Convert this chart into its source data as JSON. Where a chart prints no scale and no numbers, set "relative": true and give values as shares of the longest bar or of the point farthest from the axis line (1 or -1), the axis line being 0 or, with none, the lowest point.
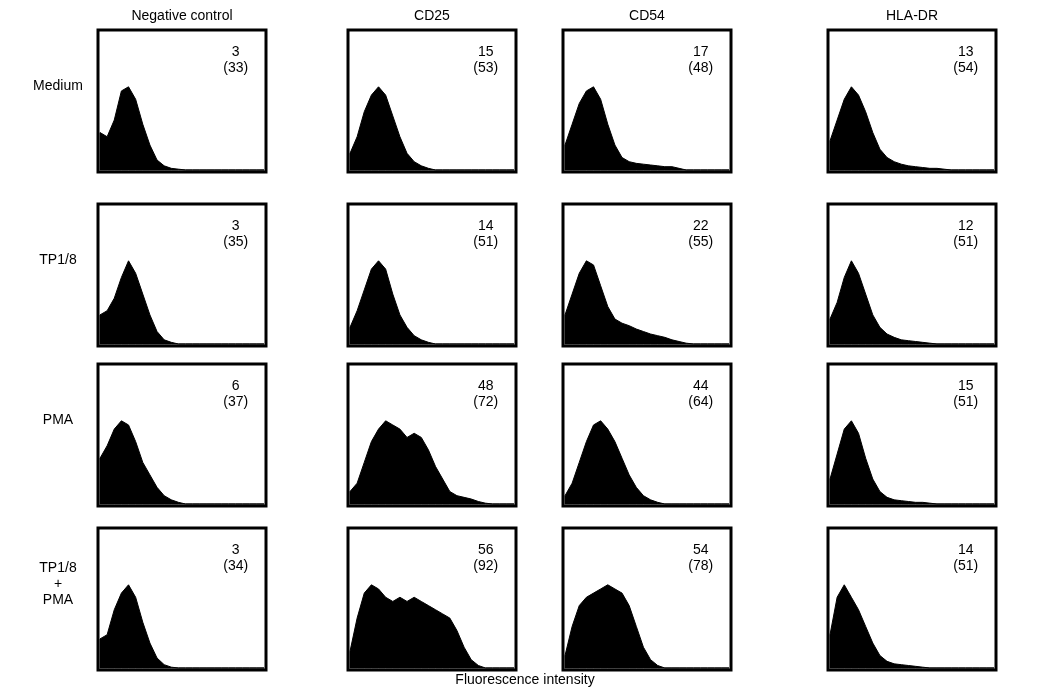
{
  "chart_data": [
    {
      "type": "area",
      "title": "Negative control",
      "ylabel": "Medium",
      "relative": true,
      "color": "#000000",
      "annotations": [
        "3",
        "(33)"
      ],
      "categories": [
        null,
        null,
        null,
        null,
        null,
        null,
        null,
        null,
        null,
        null,
        null,
        null,
        null,
        null,
        null,
        null,
        null,
        null,
        null,
        null,
        null,
        null,
        null,
        null
      ],
      "values": [
        0.45,
        0.4,
        0.6,
        0.95,
        1,
        0.85,
        0.55,
        0.3,
        0.12,
        0.05,
        0.02,
        0.01,
        0,
        0,
        0,
        0,
        0,
        0,
        0,
        0,
        0,
        0,
        0,
        0
      ]
    },
    {
      "type": "area",
      "title": "CD25",
      "relative": true,
      "color": "#000000",
      "annotations": [
        "15",
        "(53)"
      ],
      "categories": [
        null,
        null,
        null,
        null,
        null,
        null,
        null,
        null,
        null,
        null,
        null,
        null,
        null,
        null,
        null,
        null,
        null,
        null,
        null,
        null,
        null,
        null,
        null,
        null
      ],
      "values": [
        0.2,
        0.4,
        0.7,
        0.9,
        1,
        0.9,
        0.65,
        0.4,
        0.2,
        0.1,
        0.05,
        0.02,
        0,
        0,
        0,
        0,
        0,
        0,
        0,
        0,
        0,
        0,
        0,
        0
      ]
    },
    {
      "type": "area",
      "title": "CD54",
      "relative": true,
      "color": "#000000",
      "annotations": [
        "17",
        "(48)"
      ],
      "categories": [
        null,
        null,
        null,
        null,
        null,
        null,
        null,
        null,
        null,
        null,
        null,
        null,
        null,
        null,
        null,
        null,
        null,
        null,
        null,
        null,
        null,
        null,
        null,
        null
      ],
      "values": [
        0.3,
        0.55,
        0.8,
        0.95,
        1,
        0.85,
        0.55,
        0.3,
        0.15,
        0.1,
        0.08,
        0.07,
        0.06,
        0.05,
        0.04,
        0.04,
        0.02,
        0,
        0,
        0,
        0,
        0,
        0,
        0
      ]
    },
    {
      "type": "area",
      "title": "HLA-DR",
      "relative": true,
      "color": "#000000",
      "annotations": [
        "13",
        "(54)"
      ],
      "categories": [
        null,
        null,
        null,
        null,
        null,
        null,
        null,
        null,
        null,
        null,
        null,
        null,
        null,
        null,
        null,
        null,
        null,
        null,
        null,
        null,
        null,
        null,
        null,
        null
      ],
      "values": [
        0.35,
        0.6,
        0.85,
        1,
        0.9,
        0.7,
        0.45,
        0.25,
        0.15,
        0.1,
        0.07,
        0.05,
        0.04,
        0.03,
        0.02,
        0.02,
        0.01,
        0,
        0,
        0,
        0,
        0,
        0,
        0
      ]
    },
    {
      "type": "area",
      "ylabel": "TP1/8",
      "relative": true,
      "color": "#000000",
      "annotations": [
        "3",
        "(35)"
      ],
      "categories": [
        null,
        null,
        null,
        null,
        null,
        null,
        null,
        null,
        null,
        null,
        null,
        null,
        null,
        null,
        null,
        null,
        null,
        null,
        null,
        null,
        null,
        null,
        null,
        null
      ],
      "values": [
        0.35,
        0.4,
        0.55,
        0.8,
        1,
        0.85,
        0.6,
        0.35,
        0.15,
        0.05,
        0.02,
        0,
        0,
        0,
        0,
        0,
        0,
        0,
        0,
        0,
        0,
        0,
        0,
        0
      ]
    },
    {
      "type": "area",
      "relative": true,
      "color": "#000000",
      "annotations": [
        "14",
        "(51)"
      ],
      "categories": [
        null,
        null,
        null,
        null,
        null,
        null,
        null,
        null,
        null,
        null,
        null,
        null,
        null,
        null,
        null,
        null,
        null,
        null,
        null,
        null,
        null,
        null,
        null,
        null
      ],
      "values": [
        0.2,
        0.4,
        0.65,
        0.9,
        1,
        0.9,
        0.6,
        0.35,
        0.2,
        0.1,
        0.05,
        0.02,
        0,
        0,
        0,
        0,
        0,
        0,
        0,
        0,
        0,
        0,
        0,
        0
      ]
    },
    {
      "type": "area",
      "relative": true,
      "color": "#000000",
      "annotations": [
        "22",
        "(55)"
      ],
      "categories": [
        null,
        null,
        null,
        null,
        null,
        null,
        null,
        null,
        null,
        null,
        null,
        null,
        null,
        null,
        null,
        null,
        null,
        null,
        null,
        null,
        null,
        null,
        null,
        null
      ],
      "values": [
        0.35,
        0.6,
        0.85,
        1,
        0.95,
        0.7,
        0.45,
        0.3,
        0.25,
        0.22,
        0.18,
        0.15,
        0.12,
        0.1,
        0.08,
        0.05,
        0.03,
        0.01,
        0,
        0,
        0,
        0,
        0,
        0
      ]
    },
    {
      "type": "area",
      "relative": true,
      "color": "#000000",
      "annotations": [
        "12",
        "(51)"
      ],
      "categories": [
        null,
        null,
        null,
        null,
        null,
        null,
        null,
        null,
        null,
        null,
        null,
        null,
        null,
        null,
        null,
        null,
        null,
        null,
        null,
        null,
        null,
        null,
        null,
        null
      ],
      "values": [
        0.3,
        0.5,
        0.8,
        1,
        0.85,
        0.6,
        0.35,
        0.2,
        0.12,
        0.08,
        0.05,
        0.04,
        0.03,
        0.02,
        0.01,
        0,
        0,
        0,
        0,
        0,
        0,
        0,
        0,
        0
      ]
    },
    {
      "type": "area",
      "ylabel": "PMA",
      "relative": true,
      "color": "#000000",
      "annotations": [
        "6",
        "(37)"
      ],
      "categories": [
        null,
        null,
        null,
        null,
        null,
        null,
        null,
        null,
        null,
        null,
        null,
        null,
        null,
        null,
        null,
        null,
        null,
        null,
        null,
        null,
        null,
        null,
        null,
        null
      ],
      "values": [
        0.55,
        0.7,
        0.9,
        1,
        0.95,
        0.75,
        0.5,
        0.35,
        0.2,
        0.1,
        0.05,
        0.02,
        0,
        0,
        0,
        0,
        0,
        0,
        0,
        0,
        0,
        0,
        0,
        0
      ]
    },
    {
      "type": "area",
      "relative": true,
      "color": "#000000",
      "annotations": [
        "48",
        "(72)"
      ],
      "categories": [
        null,
        null,
        null,
        null,
        null,
        null,
        null,
        null,
        null,
        null,
        null,
        null,
        null,
        null,
        null,
        null,
        null,
        null,
        null,
        null,
        null,
        null,
        null,
        null
      ],
      "values": [
        0.15,
        0.25,
        0.5,
        0.75,
        0.9,
        1,
        0.95,
        0.9,
        0.8,
        0.85,
        0.8,
        0.65,
        0.45,
        0.3,
        0.15,
        0.1,
        0.08,
        0.06,
        0.03,
        0.01,
        0,
        0,
        0,
        0
      ]
    },
    {
      "type": "area",
      "relative": true,
      "color": "#000000",
      "annotations": [
        "44",
        "(64)"
      ],
      "categories": [
        null,
        null,
        null,
        null,
        null,
        null,
        null,
        null,
        null,
        null,
        null,
        null,
        null,
        null,
        null,
        null,
        null,
        null,
        null,
        null,
        null,
        null,
        null,
        null
      ],
      "values": [
        0.1,
        0.25,
        0.5,
        0.75,
        0.95,
        1,
        0.9,
        0.75,
        0.55,
        0.35,
        0.2,
        0.1,
        0.05,
        0.02,
        0,
        0,
        0,
        0,
        0,
        0,
        0,
        0,
        0,
        0
      ]
    },
    {
      "type": "area",
      "relative": true,
      "color": "#000000",
      "annotations": [
        "15",
        "(51)"
      ],
      "categories": [
        null,
        null,
        null,
        null,
        null,
        null,
        null,
        null,
        null,
        null,
        null,
        null,
        null,
        null,
        null,
        null,
        null,
        null,
        null,
        null,
        null,
        null,
        null,
        null
      ],
      "values": [
        0.3,
        0.6,
        0.9,
        1,
        0.85,
        0.55,
        0.3,
        0.15,
        0.08,
        0.05,
        0.04,
        0.03,
        0.02,
        0.02,
        0.01,
        0,
        0,
        0,
        0,
        0,
        0,
        0,
        0,
        0
      ]
    },
    {
      "type": "area",
      "ylabel": "TP1/8\n+\nPMA",
      "relative": true,
      "color": "#000000",
      "annotations": [
        "3",
        "(34)"
      ],
      "categories": [
        null,
        null,
        null,
        null,
        null,
        null,
        null,
        null,
        null,
        null,
        null,
        null,
        null,
        null,
        null,
        null,
        null,
        null,
        null,
        null,
        null,
        null,
        null,
        null
      ],
      "values": [
        0.35,
        0.4,
        0.7,
        0.9,
        1,
        0.85,
        0.55,
        0.3,
        0.12,
        0.04,
        0.01,
        0,
        0,
        0,
        0,
        0,
        0,
        0,
        0,
        0,
        0,
        0,
        0,
        0
      ]
    },
    {
      "type": "area",
      "xlabel": "Fluorescence intensity",
      "relative": true,
      "color": "#000000",
      "annotations": [
        "56",
        "(92)"
      ],
      "categories": [
        null,
        null,
        null,
        null,
        null,
        null,
        null,
        null,
        null,
        null,
        null,
        null,
        null,
        null,
        null,
        null,
        null,
        null,
        null,
        null,
        null,
        null,
        null,
        null
      ],
      "values": [
        0.2,
        0.6,
        0.9,
        1,
        0.95,
        0.85,
        0.8,
        0.85,
        0.8,
        0.85,
        0.8,
        0.75,
        0.7,
        0.65,
        0.6,
        0.45,
        0.25,
        0.1,
        0.03,
        0,
        0,
        0,
        0,
        0
      ]
    },
    {
      "type": "area",
      "relative": true,
      "color": "#000000",
      "annotations": [
        "54",
        "(78)"
      ],
      "categories": [
        null,
        null,
        null,
        null,
        null,
        null,
        null,
        null,
        null,
        null,
        null,
        null,
        null,
        null,
        null,
        null,
        null,
        null,
        null,
        null,
        null,
        null,
        null,
        null
      ],
      "values": [
        0.15,
        0.5,
        0.75,
        0.85,
        0.9,
        0.95,
        1,
        0.95,
        0.9,
        0.75,
        0.5,
        0.25,
        0.1,
        0.03,
        0,
        0,
        0,
        0,
        0,
        0,
        0,
        0,
        0,
        0
      ]
    },
    {
      "type": "area",
      "relative": true,
      "color": "#000000",
      "annotations": [
        "14",
        "(51)"
      ],
      "categories": [
        null,
        null,
        null,
        null,
        null,
        null,
        null,
        null,
        null,
        null,
        null,
        null,
        null,
        null,
        null,
        null,
        null,
        null,
        null,
        null,
        null,
        null,
        null,
        null
      ],
      "values": [
        0.4,
        0.85,
        1,
        0.85,
        0.7,
        0.5,
        0.3,
        0.15,
        0.08,
        0.05,
        0.04,
        0.03,
        0.02,
        0.01,
        0,
        0,
        0,
        0,
        0,
        0,
        0,
        0,
        0,
        0
      ]
    }
  ]
}
